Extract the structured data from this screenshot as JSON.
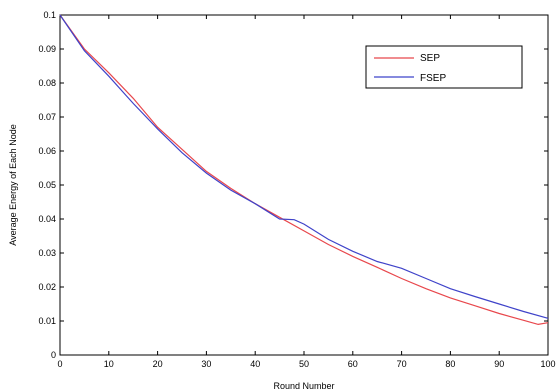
{
  "chart_data": {
    "type": "line",
    "title": "",
    "xlabel": "Round Number",
    "ylabel": "Average Energy of Each Node",
    "xlim": [
      0,
      100
    ],
    "ylim": [
      0,
      0.1
    ],
    "xticks": [
      0,
      10,
      20,
      30,
      40,
      50,
      60,
      70,
      80,
      90,
      100
    ],
    "yticks": [
      0,
      0.01,
      0.02,
      0.03,
      0.04,
      0.05,
      0.06,
      0.07,
      0.08,
      0.09,
      0.1
    ],
    "grid": false,
    "legend_position": "top-right",
    "series": [
      {
        "name": "SEP",
        "color": "#e8474c",
        "x": [
          0,
          5,
          10,
          15,
          20,
          25,
          30,
          35,
          40,
          45,
          50,
          55,
          60,
          65,
          70,
          75,
          80,
          85,
          90,
          95,
          98,
          100
        ],
        "y": [
          0.1,
          0.09,
          0.083,
          0.0755,
          0.067,
          0.0605,
          0.054,
          0.049,
          0.0445,
          0.0405,
          0.0365,
          0.0325,
          0.029,
          0.0258,
          0.0225,
          0.0195,
          0.0168,
          0.0145,
          0.0122,
          0.0102,
          0.009,
          0.0095
        ]
      },
      {
        "name": "FSEP",
        "color": "#3f43c9",
        "x": [
          0,
          5,
          10,
          15,
          20,
          25,
          30,
          35,
          40,
          45,
          48,
          50,
          55,
          60,
          65,
          70,
          75,
          80,
          85,
          90,
          95,
          100
        ],
        "y": [
          0.1,
          0.0895,
          0.082,
          0.074,
          0.0665,
          0.0595,
          0.0535,
          0.0485,
          0.0445,
          0.04,
          0.0398,
          0.0385,
          0.034,
          0.0305,
          0.0275,
          0.0255,
          0.0225,
          0.0195,
          0.0172,
          0.015,
          0.0128,
          0.0108
        ]
      }
    ]
  }
}
